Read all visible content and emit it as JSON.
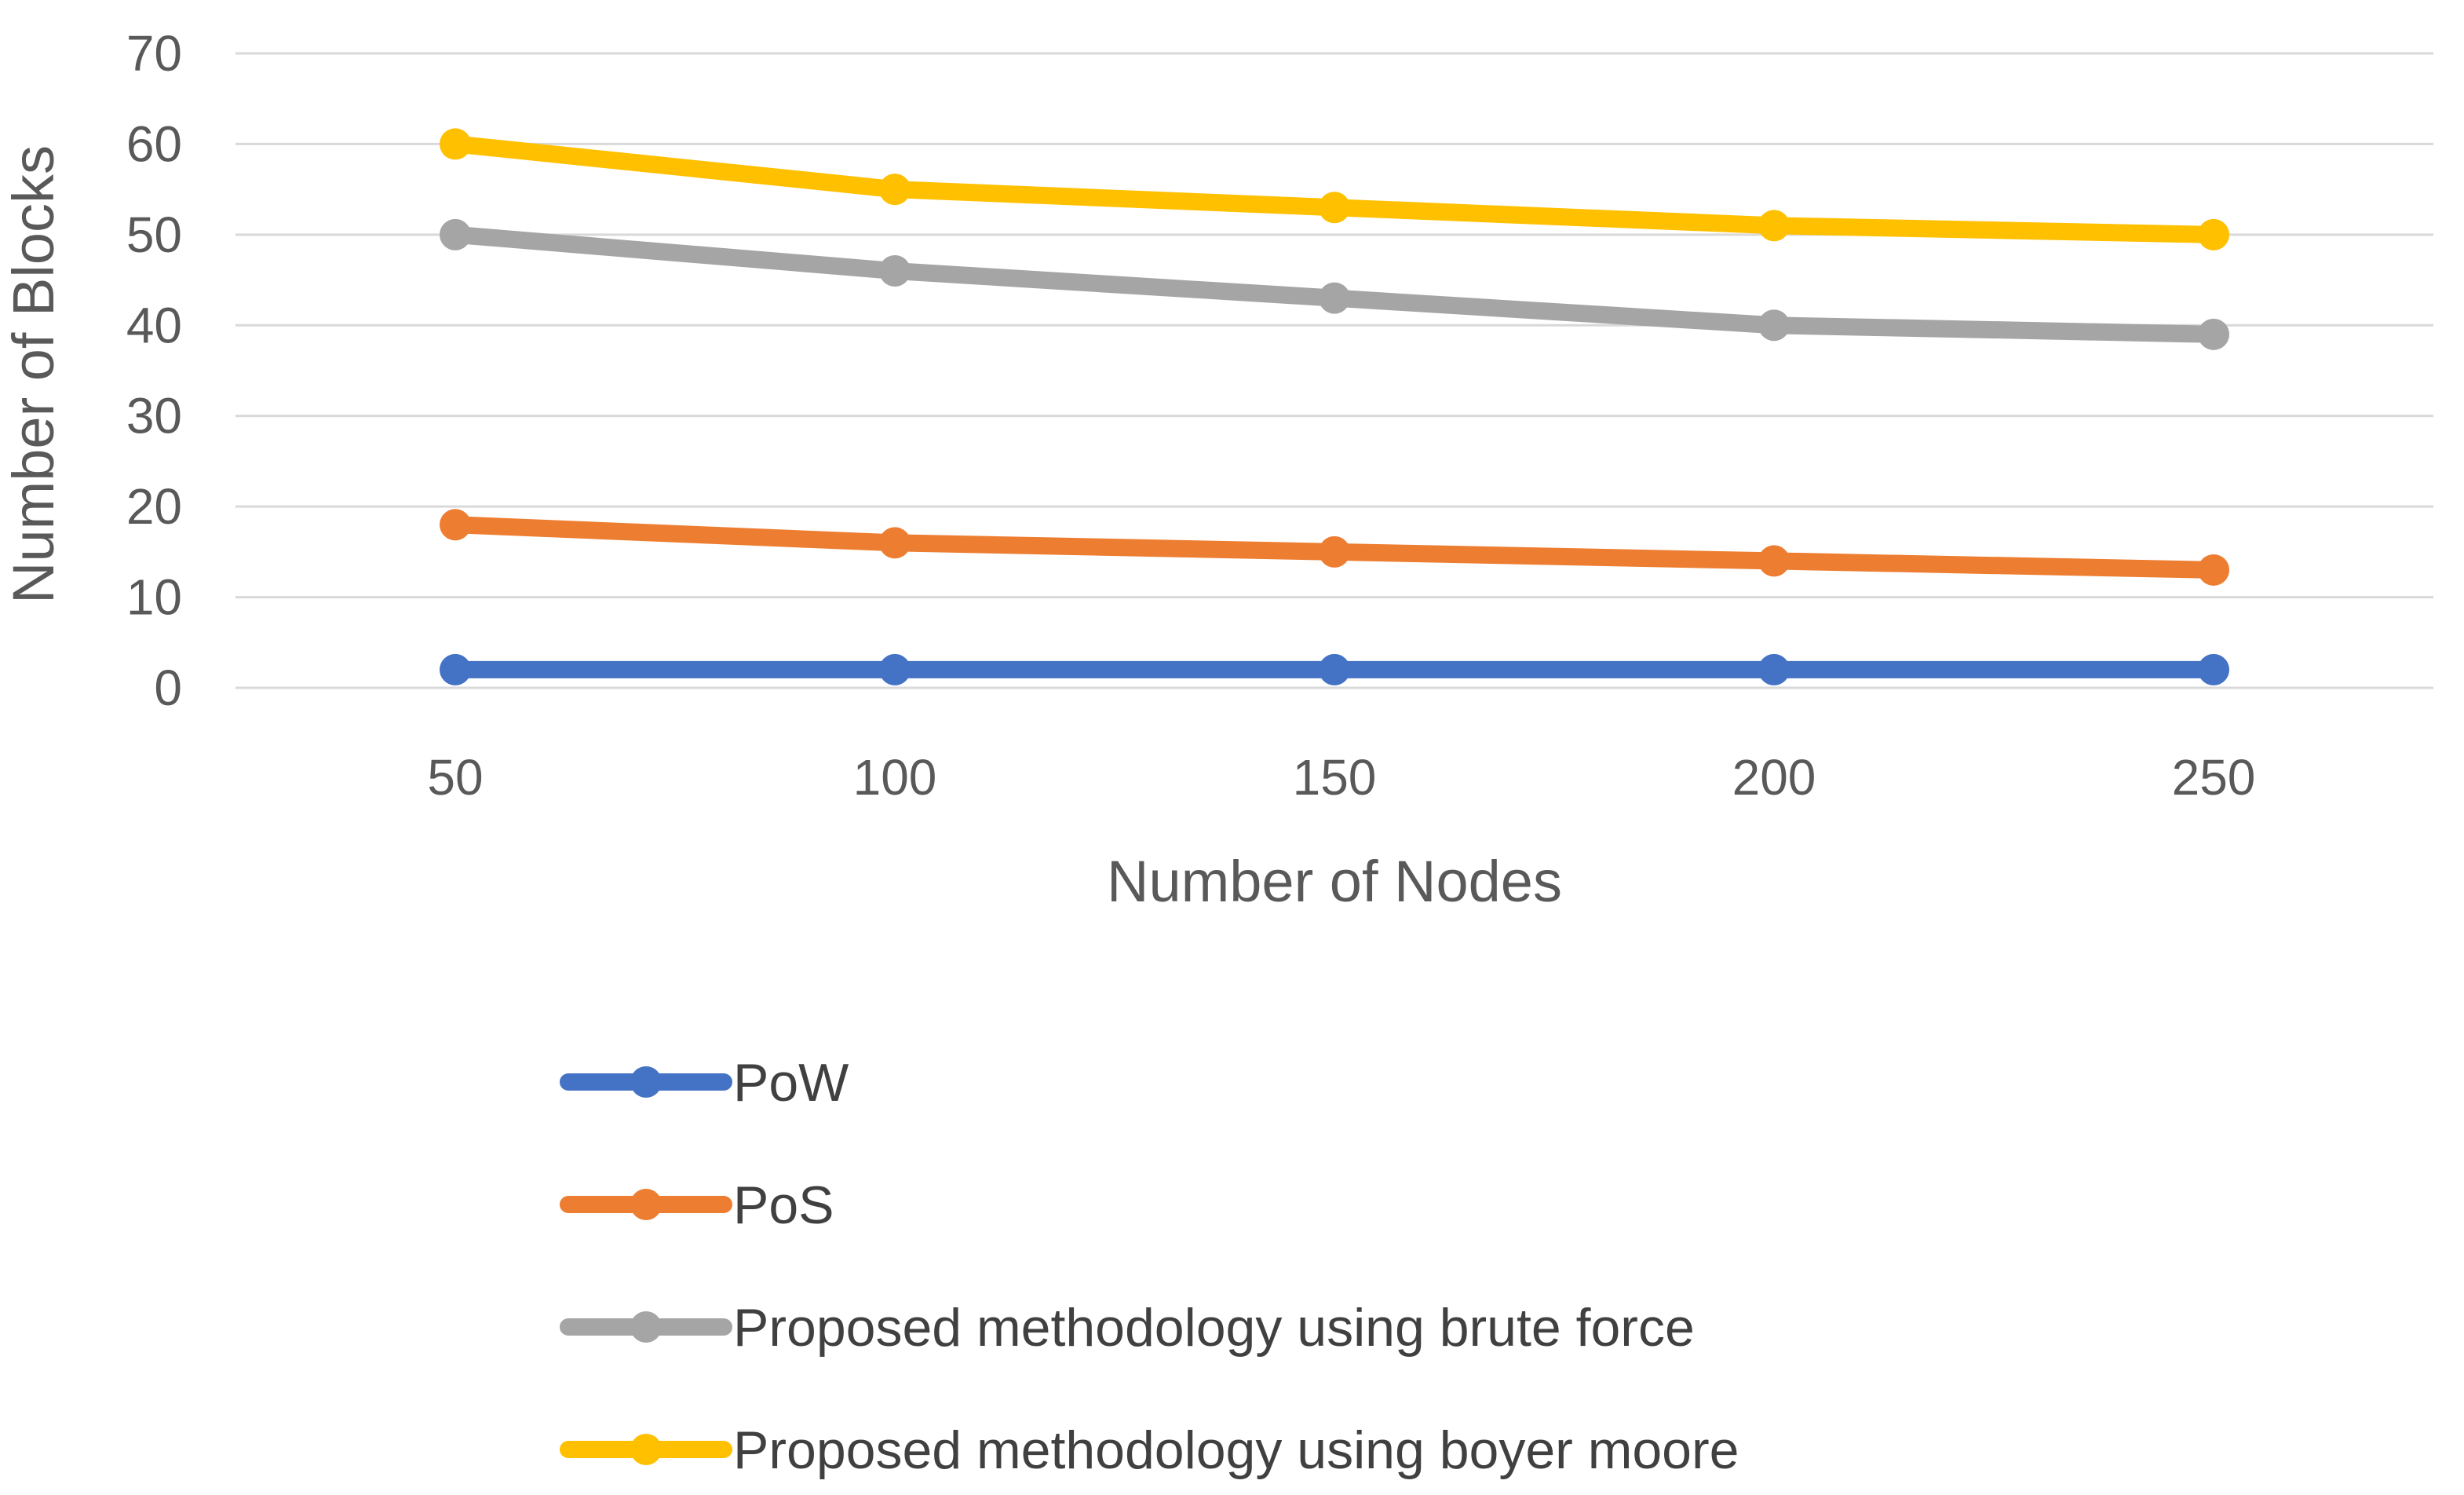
{
  "chart_data": {
    "type": "line",
    "title": "",
    "xlabel": "Number of Nodes",
    "ylabel": "Number of Blocks",
    "x": [
      50,
      100,
      150,
      200,
      250
    ],
    "x_tick_labels": [
      "50",
      "100",
      "150",
      "200",
      "250"
    ],
    "ylim": [
      0,
      70
    ],
    "y_ticks": [
      0,
      10,
      20,
      30,
      40,
      50,
      60,
      70
    ],
    "y_tick_labels": [
      "0",
      "10",
      "20",
      "30",
      "40",
      "50",
      "60",
      "70"
    ],
    "grid": true,
    "legend_position": "bottom",
    "series": [
      {
        "name": "PoW",
        "color": "#4472C4",
        "values": [
          2,
          2,
          2,
          2,
          2
        ]
      },
      {
        "name": "PoS",
        "color": "#ED7D31",
        "values": [
          18,
          16,
          15,
          14,
          13
        ]
      },
      {
        "name": "Proposed methodology using brute force",
        "color": "#A5A5A5",
        "values": [
          50,
          46,
          43,
          40,
          39
        ]
      },
      {
        "name": "Proposed methodology using boyer moore",
        "color": "#FFC000",
        "values": [
          60,
          55,
          53,
          51,
          50
        ]
      }
    ]
  },
  "colors": {
    "gridline": "#D9D9D9",
    "text": "#595959"
  }
}
